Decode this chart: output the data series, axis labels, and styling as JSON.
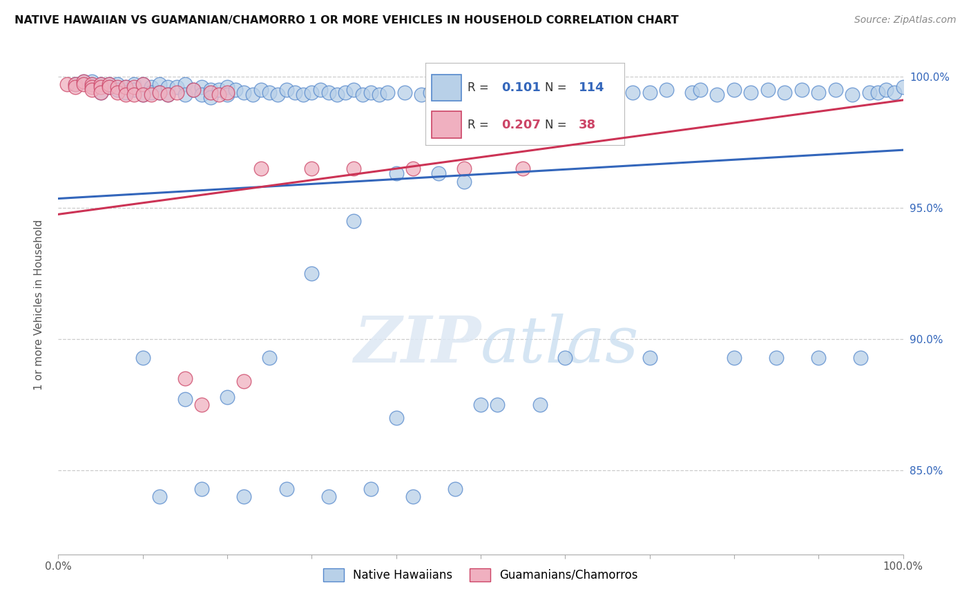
{
  "title": "NATIVE HAWAIIAN VS GUAMANIAN/CHAMORRO 1 OR MORE VEHICLES IN HOUSEHOLD CORRELATION CHART",
  "source": "Source: ZipAtlas.com",
  "ylabel": "1 or more Vehicles in Household",
  "xlim": [
    0.0,
    1.0
  ],
  "ylim": [
    0.818,
    1.008
  ],
  "yticks": [
    0.85,
    0.9,
    0.95,
    1.0
  ],
  "ytick_labels": [
    "85.0%",
    "90.0%",
    "95.0%",
    "100.0%"
  ],
  "xticks": [
    0.0,
    0.1,
    0.2,
    0.3,
    0.4,
    0.5,
    0.6,
    0.7,
    0.8,
    0.9,
    1.0
  ],
  "xtick_labels": [
    "0.0%",
    "",
    "",
    "",
    "",
    "",
    "",
    "",
    "",
    "",
    "100.0%"
  ],
  "blue_color": "#b8d0e8",
  "pink_color": "#f0b0c0",
  "blue_edge_color": "#5588cc",
  "pink_edge_color": "#cc4466",
  "blue_line_color": "#3366bb",
  "pink_line_color": "#cc3355",
  "r_blue": 0.101,
  "n_blue": 114,
  "r_pink": 0.207,
  "n_pink": 38,
  "legend_label_blue": "Native Hawaiians",
  "legend_label_pink": "Guamanians/Chamorros",
  "watermark_zip": "ZIP",
  "watermark_atlas": "atlas",
  "blue_scatter_x": [
    0.02,
    0.03,
    0.04,
    0.04,
    0.05,
    0.05,
    0.06,
    0.06,
    0.07,
    0.07,
    0.08,
    0.08,
    0.09,
    0.09,
    0.1,
    0.1,
    0.11,
    0.11,
    0.12,
    0.12,
    0.13,
    0.13,
    0.14,
    0.15,
    0.15,
    0.16,
    0.17,
    0.17,
    0.18,
    0.18,
    0.19,
    0.2,
    0.2,
    0.21,
    0.22,
    0.23,
    0.24,
    0.25,
    0.26,
    0.27,
    0.28,
    0.29,
    0.3,
    0.31,
    0.32,
    0.33,
    0.34,
    0.35,
    0.36,
    0.37,
    0.38,
    0.39,
    0.4,
    0.41,
    0.43,
    0.44,
    0.45,
    0.46,
    0.47,
    0.48,
    0.5,
    0.51,
    0.52,
    0.53,
    0.55,
    0.56,
    0.58,
    0.6,
    0.62,
    0.64,
    0.65,
    0.68,
    0.7,
    0.72,
    0.75,
    0.76,
    0.78,
    0.8,
    0.82,
    0.84,
    0.86,
    0.88,
    0.9,
    0.92,
    0.94,
    0.96,
    0.97,
    0.98,
    0.99,
    1.0,
    0.1,
    0.15,
    0.2,
    0.25,
    0.3,
    0.35,
    0.4,
    0.5,
    0.6,
    0.7,
    0.8,
    0.85,
    0.9,
    0.95,
    0.12,
    0.17,
    0.22,
    0.27,
    0.32,
    0.37,
    0.42,
    0.47,
    0.52,
    0.57
  ],
  "blue_scatter_y": [
    0.997,
    0.998,
    0.997,
    0.998,
    0.997,
    0.994,
    0.997,
    0.996,
    0.997,
    0.995,
    0.996,
    0.994,
    0.997,
    0.995,
    0.997,
    0.993,
    0.996,
    0.994,
    0.997,
    0.994,
    0.996,
    0.993,
    0.996,
    0.997,
    0.993,
    0.995,
    0.996,
    0.993,
    0.995,
    0.992,
    0.995,
    0.996,
    0.993,
    0.995,
    0.994,
    0.993,
    0.995,
    0.994,
    0.993,
    0.995,
    0.994,
    0.993,
    0.994,
    0.995,
    0.994,
    0.993,
    0.994,
    0.995,
    0.993,
    0.994,
    0.993,
    0.994,
    0.963,
    0.994,
    0.993,
    0.994,
    0.963,
    0.994,
    0.993,
    0.96,
    0.992,
    0.994,
    0.993,
    0.994,
    0.994,
    0.993,
    0.994,
    0.994,
    0.993,
    0.994,
    0.994,
    0.994,
    0.994,
    0.995,
    0.994,
    0.995,
    0.993,
    0.995,
    0.994,
    0.995,
    0.994,
    0.995,
    0.994,
    0.995,
    0.993,
    0.994,
    0.994,
    0.995,
    0.994,
    0.996,
    0.893,
    0.877,
    0.878,
    0.893,
    0.925,
    0.945,
    0.87,
    0.875,
    0.893,
    0.893,
    0.893,
    0.893,
    0.893,
    0.893,
    0.84,
    0.843,
    0.84,
    0.843,
    0.84,
    0.843,
    0.84,
    0.843,
    0.875,
    0.875
  ],
  "pink_scatter_x": [
    0.01,
    0.02,
    0.02,
    0.03,
    0.03,
    0.04,
    0.04,
    0.04,
    0.05,
    0.05,
    0.05,
    0.06,
    0.06,
    0.07,
    0.07,
    0.08,
    0.08,
    0.09,
    0.09,
    0.1,
    0.1,
    0.11,
    0.12,
    0.13,
    0.14,
    0.15,
    0.16,
    0.17,
    0.18,
    0.19,
    0.2,
    0.22,
    0.24,
    0.3,
    0.35,
    0.42,
    0.48,
    0.55
  ],
  "pink_scatter_y": [
    0.997,
    0.997,
    0.996,
    0.998,
    0.997,
    0.997,
    0.996,
    0.995,
    0.997,
    0.996,
    0.994,
    0.997,
    0.996,
    0.996,
    0.994,
    0.996,
    0.993,
    0.996,
    0.993,
    0.997,
    0.993,
    0.993,
    0.994,
    0.993,
    0.994,
    0.885,
    0.995,
    0.875,
    0.994,
    0.993,
    0.994,
    0.884,
    0.965,
    0.965,
    0.965,
    0.965,
    0.965,
    0.965
  ],
  "blue_trend_x": [
    0.0,
    1.0
  ],
  "blue_trend_y": [
    0.9535,
    0.972
  ],
  "pink_trend_x": [
    0.0,
    1.0
  ],
  "pink_trend_y": [
    0.9475,
    0.991
  ]
}
